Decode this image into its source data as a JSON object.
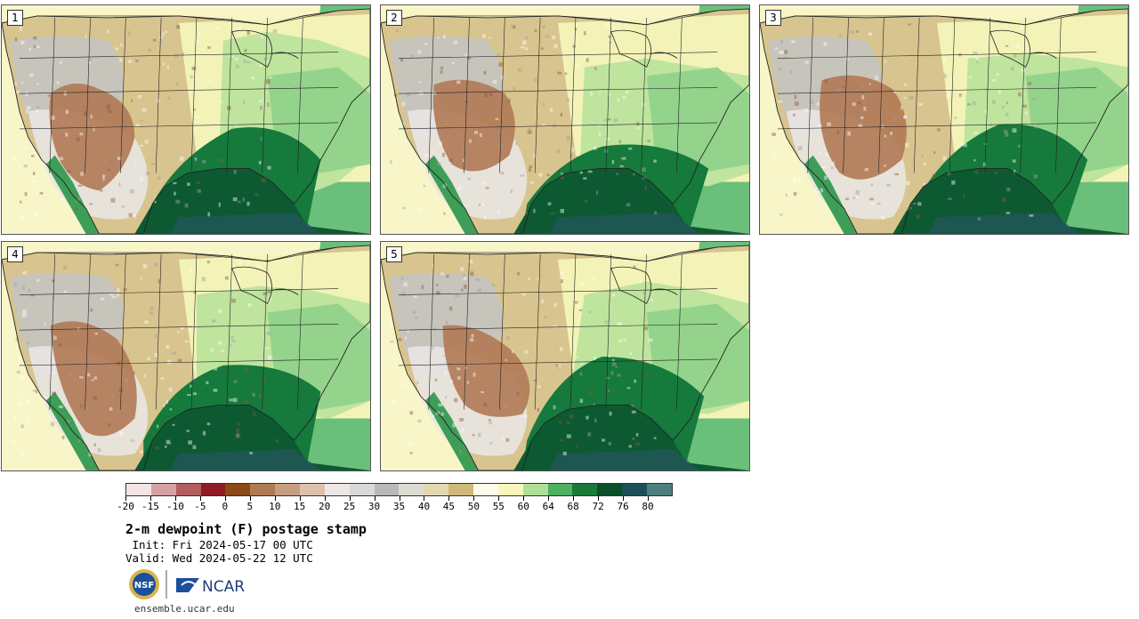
{
  "product": {
    "title": "2-m dewpoint (F) postage stamp",
    "init": " Init: Fri 2024-05-17 00 UTC",
    "valid": "Valid: Wed 2024-05-22 12 UTC",
    "site": "ensemble.ucar.edu",
    "logo_nsf": "NSF",
    "logo_ncar": "NCAR"
  },
  "panels": [
    {
      "label": "1",
      "variant": 0
    },
    {
      "label": "2",
      "variant": 1
    },
    {
      "label": "3",
      "variant": 2
    },
    {
      "label": "4",
      "variant": 3
    },
    {
      "label": "5",
      "variant": 4
    }
  ],
  "colorbar": {
    "ticks": [
      "-20",
      "-15",
      "-10",
      "-5",
      "0",
      "5",
      "10",
      "15",
      "20",
      "25",
      "30",
      "35",
      "40",
      "45",
      "50",
      "55",
      "60",
      "64",
      "68",
      "72",
      "76",
      "80"
    ],
    "colors": [
      "#f4e4e4",
      "#d6a1a1",
      "#b35e5e",
      "#8e1c22",
      "#8b4a18",
      "#b07a55",
      "#c79d82",
      "#dcc1ad",
      "#ebe8e5",
      "#d9d9d9",
      "#b9b9b9",
      "#dcdcd4",
      "#e4d8b4",
      "#d0b87a",
      "#fbfbe8",
      "#f7f7b9",
      "#aee098",
      "#4fb060",
      "#1a7a3a",
      "#0b4e2a",
      "#1c5058",
      "#4e7e80"
    ]
  },
  "palette": {
    "ocean_pacific": "#f8f6c8",
    "ocean_atlantic": "#6ac07a",
    "gulf": "#0d5a32",
    "gulf_deep": "#23555a",
    "dry_brown": "#b07a55",
    "grey": "#c4c4c4",
    "tan": "#d8c48e",
    "pale_green": "#bfe49e"
  }
}
